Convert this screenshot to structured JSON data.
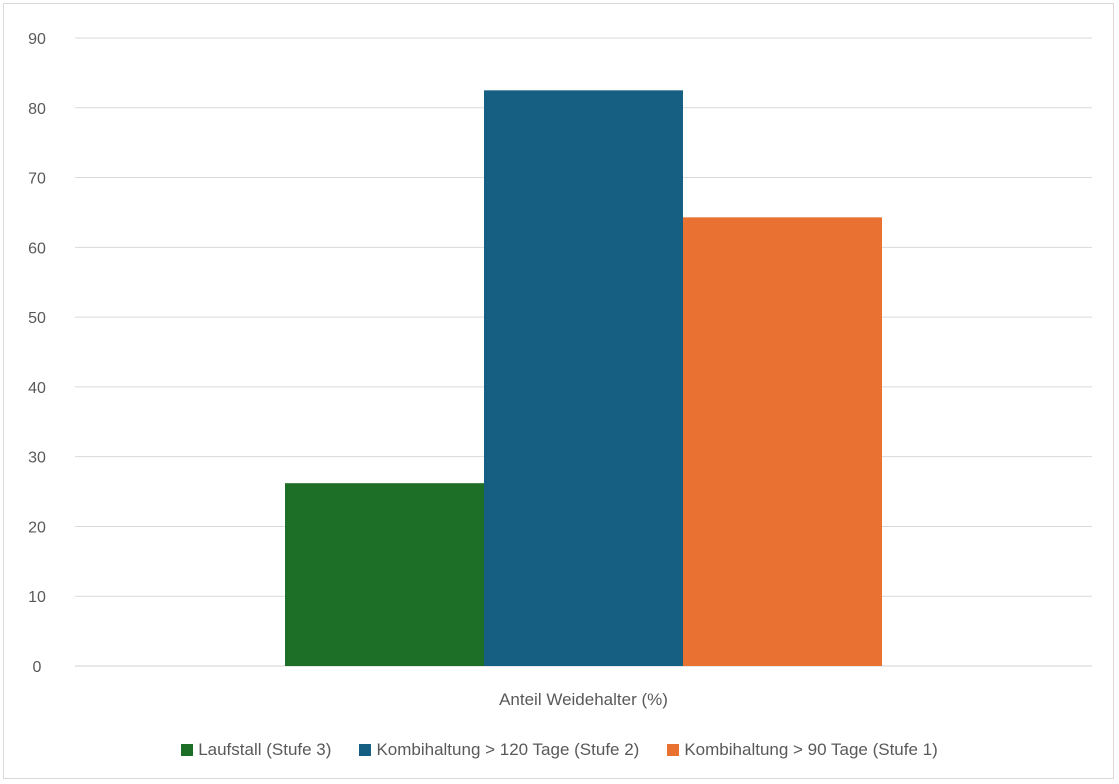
{
  "chart_data": {
    "type": "bar",
    "categories": [
      "Anteil Weidehalter (%)"
    ],
    "series": [
      {
        "name": "Laufstall (Stufe 3)",
        "values": [
          26.2
        ],
        "color": "#1d6f27"
      },
      {
        "name": "Kombihaltung > 120 Tage (Stufe 2)",
        "values": [
          82.5
        ],
        "color": "#175f82"
      },
      {
        "name": "Kombihaltung > 90 Tage (Stufe 1)",
        "values": [
          64.3
        ],
        "color": "#e97132"
      }
    ],
    "ylim": [
      0,
      90
    ],
    "yticks": [
      0,
      10,
      20,
      30,
      40,
      50,
      60,
      70,
      80,
      90
    ],
    "grid": true,
    "legend_position": "bottom"
  }
}
